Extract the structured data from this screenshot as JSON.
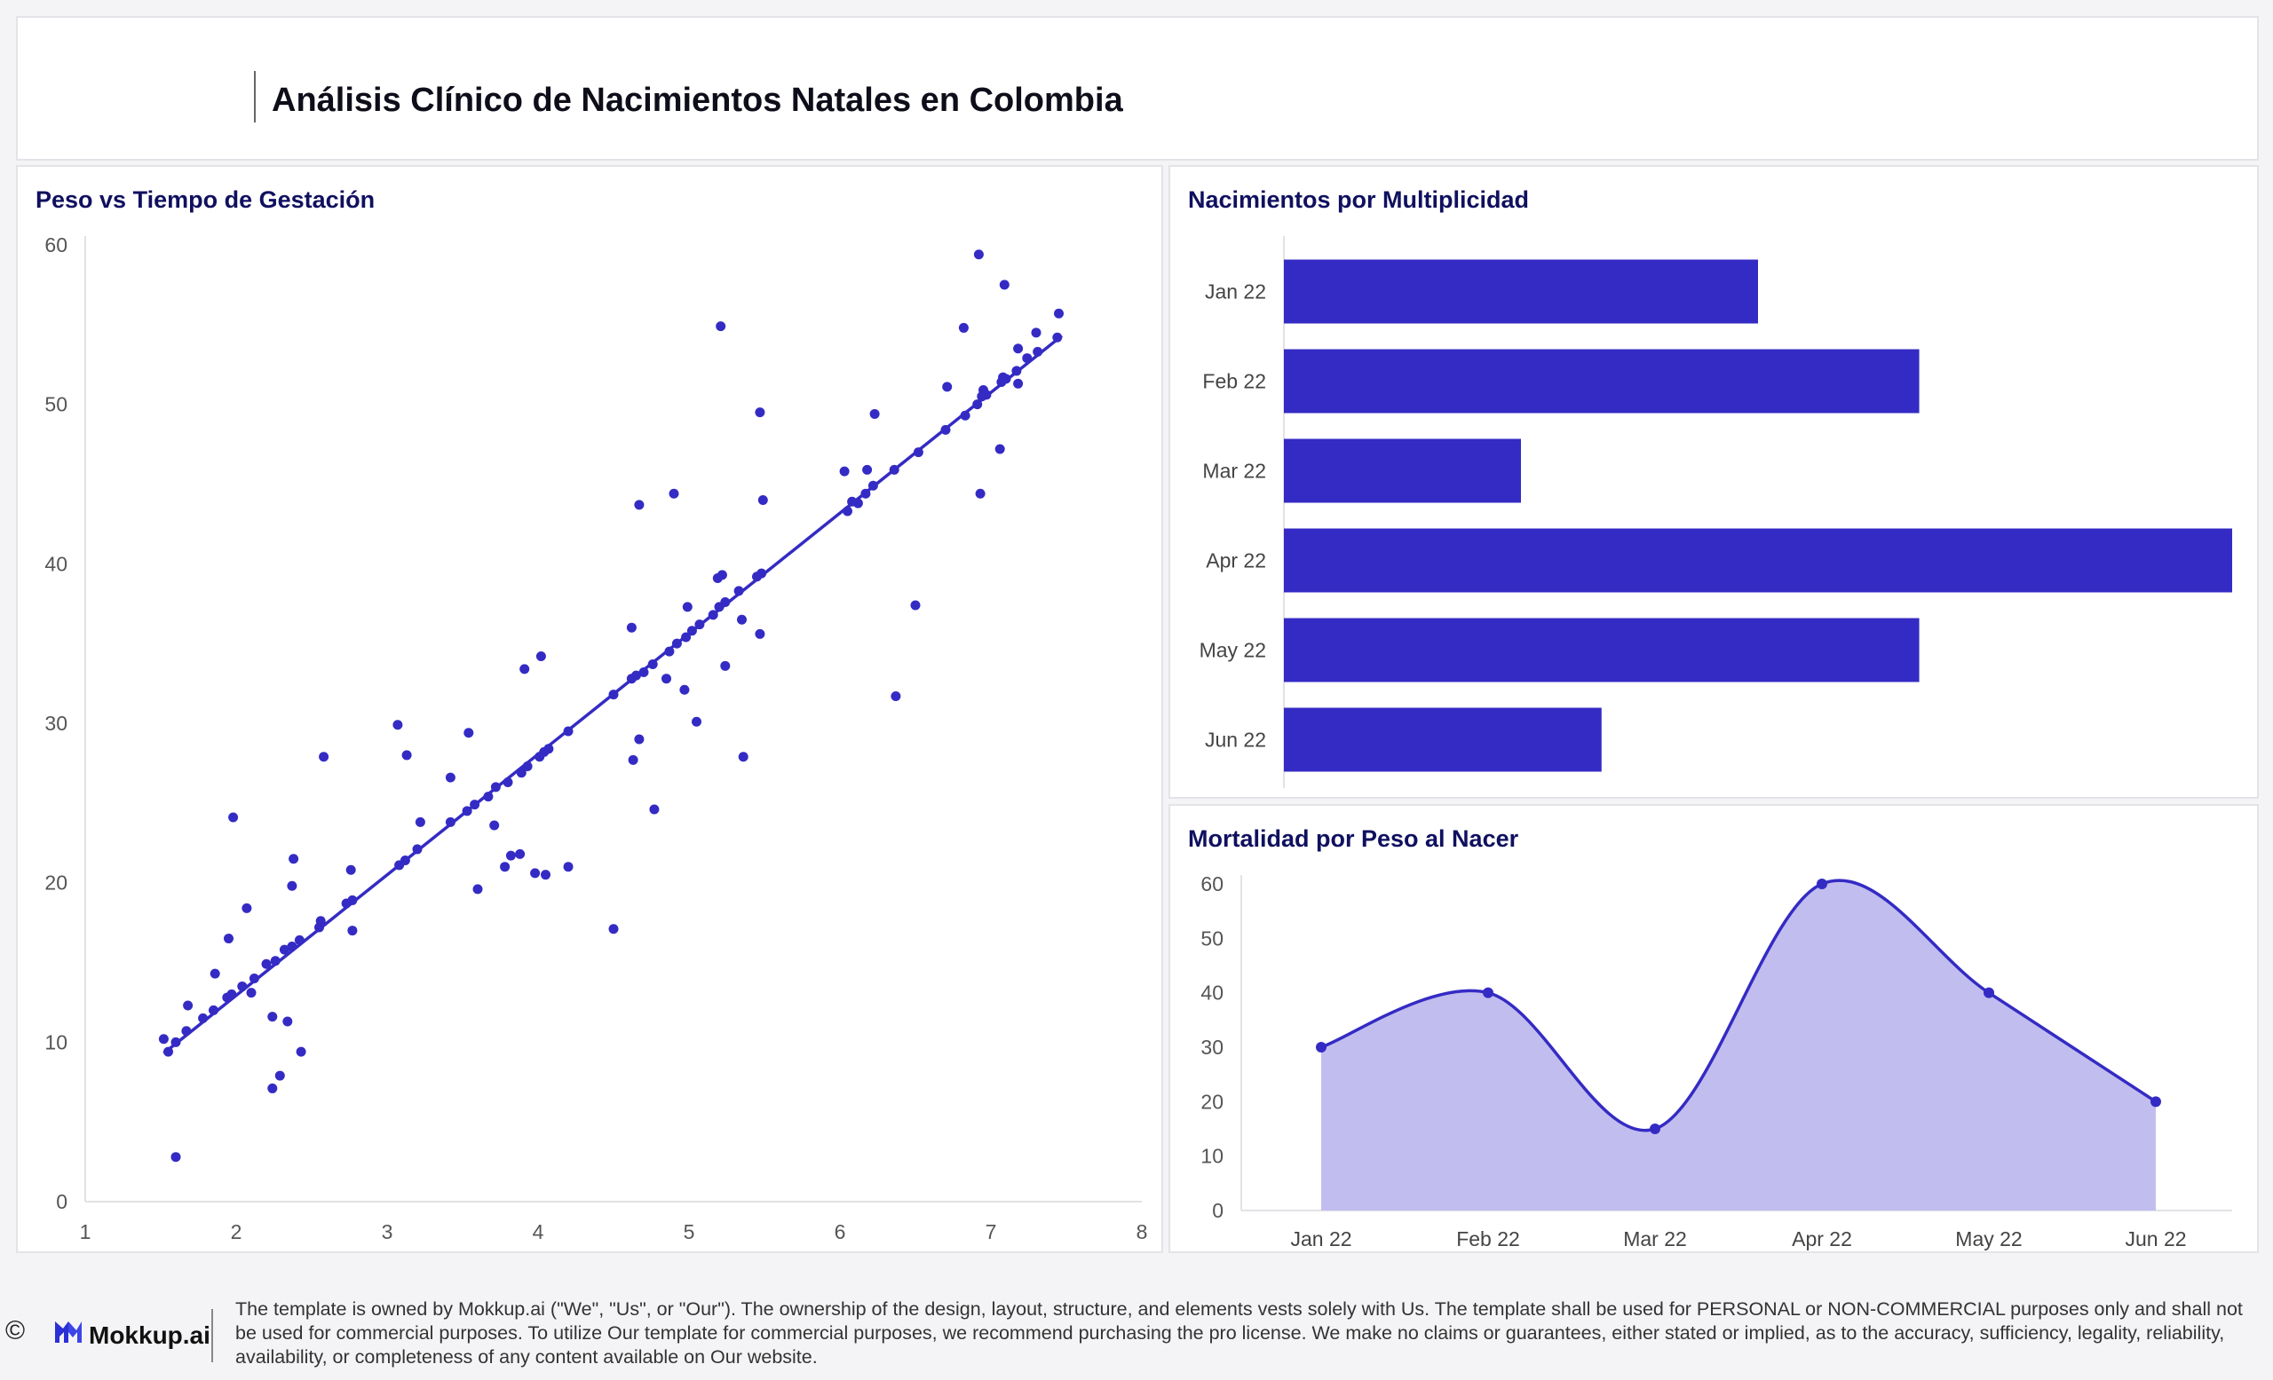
{
  "header": {
    "title": "Análisis Clínico de Nacimientos Natales en Colombia"
  },
  "panels": {
    "scatter_title": "Peso vs Tiempo de Gestación",
    "bar_title": "Nacimientos por Multiplicidad",
    "area_title": "Mortalidad por Peso al Nacer"
  },
  "chart_data": [
    {
      "type": "scatter",
      "title": "Peso vs Tiempo de Gestación",
      "xlabel": "",
      "ylabel": "",
      "xlim": [
        1,
        8
      ],
      "ylim": [
        0,
        60
      ],
      "xticks": [
        1,
        2,
        3,
        4,
        5,
        6,
        7,
        8
      ],
      "yticks": [
        0,
        10,
        20,
        30,
        40,
        50,
        60
      ],
      "grid": false,
      "color": "#342bc4",
      "trend": {
        "x": [
          1.52,
          7.47
        ],
        "y": [
          9.3,
          54.3
        ]
      },
      "points": [
        [
          1.52,
          10.2
        ],
        [
          1.55,
          9.4
        ],
        [
          1.6,
          2.8
        ],
        [
          1.6,
          10.0
        ],
        [
          1.67,
          10.7
        ],
        [
          1.68,
          12.3
        ],
        [
          1.78,
          11.5
        ],
        [
          1.85,
          12.0
        ],
        [
          1.86,
          14.3
        ],
        [
          1.94,
          12.8
        ],
        [
          1.95,
          16.5
        ],
        [
          1.97,
          13.0
        ],
        [
          1.98,
          24.1
        ],
        [
          2.04,
          13.5
        ],
        [
          2.07,
          18.4
        ],
        [
          2.1,
          13.1
        ],
        [
          2.12,
          14.0
        ],
        [
          2.2,
          14.9
        ],
        [
          2.24,
          11.6
        ],
        [
          2.24,
          7.1
        ],
        [
          2.26,
          15.1
        ],
        [
          2.29,
          7.9
        ],
        [
          2.32,
          15.8
        ],
        [
          2.34,
          11.3
        ],
        [
          2.37,
          16.0
        ],
        [
          2.37,
          19.8
        ],
        [
          2.38,
          21.5
        ],
        [
          2.42,
          16.4
        ],
        [
          2.43,
          9.4
        ],
        [
          2.55,
          17.2
        ],
        [
          2.56,
          17.6
        ],
        [
          2.58,
          27.9
        ],
        [
          2.73,
          18.7
        ],
        [
          2.76,
          20.8
        ],
        [
          2.77,
          17.0
        ],
        [
          2.77,
          18.9
        ],
        [
          3.07,
          29.9
        ],
        [
          3.08,
          21.1
        ],
        [
          3.12,
          21.4
        ],
        [
          3.13,
          28.0
        ],
        [
          3.2,
          22.1
        ],
        [
          3.22,
          23.8
        ],
        [
          3.42,
          23.8
        ],
        [
          3.42,
          26.6
        ],
        [
          3.53,
          24.5
        ],
        [
          3.54,
          29.4
        ],
        [
          3.58,
          24.9
        ],
        [
          3.6,
          19.6
        ],
        [
          3.67,
          25.4
        ],
        [
          3.71,
          23.6
        ],
        [
          3.72,
          26.0
        ],
        [
          3.78,
          21.0
        ],
        [
          3.8,
          26.3
        ],
        [
          3.82,
          21.7
        ],
        [
          3.88,
          21.8
        ],
        [
          3.89,
          26.9
        ],
        [
          3.91,
          33.4
        ],
        [
          3.93,
          27.3
        ],
        [
          3.98,
          20.6
        ],
        [
          4.01,
          27.9
        ],
        [
          4.02,
          34.2
        ],
        [
          4.04,
          28.2
        ],
        [
          4.05,
          20.5
        ],
        [
          4.07,
          28.4
        ],
        [
          4.2,
          21.0
        ],
        [
          4.2,
          29.5
        ],
        [
          4.5,
          17.1
        ],
        [
          4.5,
          31.8
        ],
        [
          4.62,
          32.8
        ],
        [
          4.62,
          36.0
        ],
        [
          4.63,
          27.7
        ],
        [
          4.65,
          33.0
        ],
        [
          4.67,
          43.7
        ],
        [
          4.67,
          29.0
        ],
        [
          4.7,
          33.2
        ],
        [
          4.76,
          33.7
        ],
        [
          4.77,
          24.6
        ],
        [
          4.85,
          32.8
        ],
        [
          4.87,
          34.5
        ],
        [
          4.9,
          44.4
        ],
        [
          4.92,
          35.0
        ],
        [
          4.97,
          32.1
        ],
        [
          4.98,
          35.4
        ],
        [
          4.99,
          37.3
        ],
        [
          5.02,
          35.8
        ],
        [
          5.05,
          30.1
        ],
        [
          5.07,
          36.2
        ],
        [
          5.16,
          36.8
        ],
        [
          5.19,
          39.1
        ],
        [
          5.2,
          37.3
        ],
        [
          5.21,
          54.9
        ],
        [
          5.22,
          39.3
        ],
        [
          5.24,
          37.6
        ],
        [
          5.24,
          33.6
        ],
        [
          5.33,
          38.3
        ],
        [
          5.35,
          36.5
        ],
        [
          5.36,
          27.9
        ],
        [
          5.45,
          39.2
        ],
        [
          5.47,
          35.6
        ],
        [
          5.47,
          49.5
        ],
        [
          5.48,
          39.4
        ],
        [
          5.49,
          44.0
        ],
        [
          6.03,
          45.8
        ],
        [
          6.05,
          43.3
        ],
        [
          6.08,
          43.9
        ],
        [
          6.12,
          43.8
        ],
        [
          6.17,
          44.4
        ],
        [
          6.18,
          45.9
        ],
        [
          6.22,
          44.9
        ],
        [
          6.23,
          49.4
        ],
        [
          6.36,
          45.9
        ],
        [
          6.37,
          31.7
        ],
        [
          6.5,
          37.4
        ],
        [
          6.52,
          47.0
        ],
        [
          6.7,
          48.4
        ],
        [
          6.71,
          51.1
        ],
        [
          6.82,
          54.8
        ],
        [
          6.83,
          49.3
        ],
        [
          6.91,
          50.0
        ],
        [
          6.92,
          59.4
        ],
        [
          6.93,
          44.4
        ],
        [
          6.94,
          50.5
        ],
        [
          6.95,
          50.9
        ],
        [
          6.97,
          50.6
        ],
        [
          7.06,
          47.2
        ],
        [
          7.07,
          51.4
        ],
        [
          7.08,
          51.7
        ],
        [
          7.09,
          57.5
        ],
        [
          7.1,
          51.6
        ],
        [
          7.17,
          52.1
        ],
        [
          7.18,
          53.5
        ],
        [
          7.18,
          51.3
        ],
        [
          7.24,
          52.9
        ],
        [
          7.3,
          54.5
        ],
        [
          7.31,
          53.3
        ],
        [
          7.44,
          54.2
        ],
        [
          7.45,
          55.7
        ]
      ]
    },
    {
      "type": "bar",
      "orientation": "horizontal",
      "title": "Nacimientos por Multiplicidad",
      "categories": [
        "Jan 22",
        "Feb 22",
        "Mar 22",
        "Apr 22",
        "May 22",
        "Jun 22"
      ],
      "values": [
        50,
        67,
        25,
        100,
        67,
        33.5
      ],
      "xlim": [
        0,
        100
      ],
      "color": "#342bc4",
      "grid": false
    },
    {
      "type": "area",
      "title": "Mortalidad por Peso al Nacer",
      "categories": [
        "Jan 22",
        "Feb 22",
        "Mar 22",
        "Apr 22",
        "May 22",
        "Jun 22"
      ],
      "values": [
        30,
        40,
        15,
        60,
        40,
        20
      ],
      "ylim": [
        0,
        60
      ],
      "yticks": [
        0,
        10,
        20,
        30,
        40,
        50,
        60
      ],
      "line_color": "#342bc4",
      "fill_color": "#c1bdee",
      "grid": false
    }
  ],
  "footer": {
    "copyright": "©",
    "logo_text": "Mokkup.ai",
    "note": "The template is owned by Mokkup.ai (\"We\", \"Us\", or \"Our\"). The ownership of the design, layout, structure, and elements vests solely with Us. The template shall be used for PERSONAL or NON-COMMERCIAL purposes only and shall not be used for commercial purposes. To utilize Our template for commercial purposes, we recommend purchasing the pro license. We make no claims or guarantees, either stated or implied, as to the accuracy, sufficiency, legality, reliability, availability, or completeness of any content available on Our website."
  }
}
